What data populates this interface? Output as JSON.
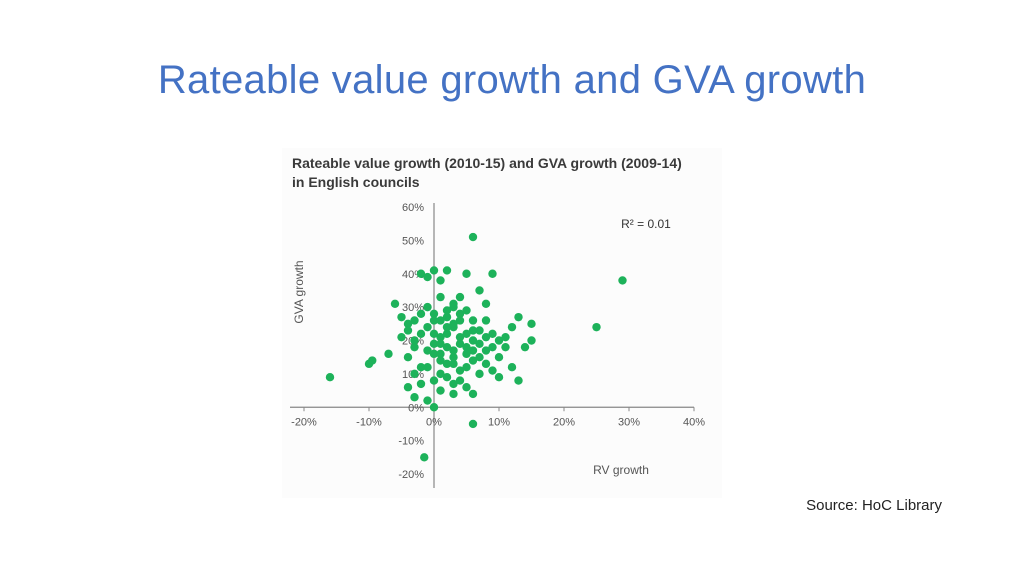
{
  "slide": {
    "title": "Rateable value growth and GVA growth",
    "source": "Source: HoC Library"
  },
  "colors": {
    "title": "#4472c4",
    "points": "#1db25a",
    "axis": "#888888",
    "text": "#555555"
  },
  "chart_data": {
    "type": "scatter",
    "title": "Rateable value growth (2010-15) and GVA growth (2009-14) in English councils",
    "xlabel": "RV growth",
    "ylabel": "GVA growth",
    "annotation": "R² = 0.01",
    "xlim": [
      -20,
      40
    ],
    "ylim": [
      -20,
      60
    ],
    "x_ticks": [
      -20,
      -10,
      0,
      10,
      20,
      30,
      40
    ],
    "y_ticks": [
      -20,
      -10,
      0,
      10,
      20,
      30,
      40,
      50,
      60
    ],
    "x_tick_labels": [
      "-20%",
      "-10%",
      "0%",
      "10%",
      "20%",
      "30%",
      "40%"
    ],
    "y_tick_labels": [
      "-20%",
      "-10%",
      "0%",
      "10%",
      "20%",
      "30%",
      "40%",
      "50%",
      "60%"
    ],
    "grid": false,
    "points": [
      [
        -16,
        9
      ],
      [
        -10,
        13
      ],
      [
        -9.5,
        14
      ],
      [
        -7,
        16
      ],
      [
        -6,
        31
      ],
      [
        -5,
        27
      ],
      [
        -4,
        23
      ],
      [
        -3,
        20
      ],
      [
        -3,
        10
      ],
      [
        -2,
        40
      ],
      [
        -1,
        39
      ],
      [
        0,
        41
      ],
      [
        1,
        38
      ],
      [
        2,
        41
      ],
      [
        5,
        40
      ],
      [
        6,
        51
      ],
      [
        9,
        40
      ],
      [
        7,
        35
      ],
      [
        8,
        31
      ],
      [
        4,
        33
      ],
      [
        3,
        30
      ],
      [
        12,
        24
      ],
      [
        13,
        27
      ],
      [
        15,
        25
      ],
      [
        15,
        20
      ],
      [
        14,
        18
      ],
      [
        12,
        12
      ],
      [
        13,
        8
      ],
      [
        11,
        18
      ],
      [
        10,
        15
      ],
      [
        25,
        24
      ],
      [
        29,
        38
      ],
      [
        -1,
        2
      ],
      [
        0,
        0
      ],
      [
        1,
        5
      ],
      [
        3,
        4
      ],
      [
        6,
        4
      ],
      [
        6,
        -5
      ],
      [
        -1.5,
        -15
      ],
      [
        -4,
        6
      ],
      [
        -3,
        3
      ],
      [
        -2,
        7
      ],
      [
        -1,
        12
      ],
      [
        0,
        16
      ],
      [
        1,
        19
      ],
      [
        2,
        22
      ],
      [
        3,
        24
      ],
      [
        4,
        21
      ],
      [
        5,
        18
      ],
      [
        6,
        20
      ],
      [
        7,
        23
      ],
      [
        8,
        26
      ],
      [
        9,
        22
      ],
      [
        10,
        20
      ],
      [
        4,
        28
      ],
      [
        2,
        27
      ],
      [
        0,
        26
      ],
      [
        -1,
        24
      ],
      [
        -2,
        22
      ],
      [
        -3,
        18
      ],
      [
        -4,
        15
      ],
      [
        1,
        14
      ],
      [
        3,
        13
      ],
      [
        5,
        12
      ],
      [
        7,
        15
      ],
      [
        8,
        17
      ],
      [
        9,
        11
      ],
      [
        10,
        9
      ],
      [
        4,
        8
      ],
      [
        2,
        9
      ],
      [
        0,
        8
      ],
      [
        -2,
        12
      ],
      [
        6,
        26
      ],
      [
        5,
        29
      ],
      [
        3,
        31
      ],
      [
        1,
        33
      ],
      [
        -1,
        30
      ],
      [
        0,
        22
      ],
      [
        1,
        21
      ],
      [
        2,
        24
      ],
      [
        3,
        25
      ],
      [
        4,
        26
      ],
      [
        5,
        22
      ],
      [
        6,
        23
      ],
      [
        2,
        18
      ],
      [
        3,
        17
      ],
      [
        4,
        19
      ],
      [
        1,
        26
      ],
      [
        2,
        29
      ],
      [
        0,
        28
      ],
      [
        -2,
        28
      ],
      [
        7,
        19
      ],
      [
        8,
        21
      ],
      [
        9,
        18
      ],
      [
        11,
        21
      ],
      [
        -3,
        26
      ],
      [
        -4,
        25
      ],
      [
        -5,
        21
      ],
      [
        5,
        16
      ],
      [
        6,
        14
      ],
      [
        4,
        11
      ],
      [
        3,
        7
      ],
      [
        8,
        13
      ],
      [
        0,
        19
      ],
      [
        1,
        16
      ],
      [
        2,
        13
      ],
      [
        -1,
        17
      ],
      [
        7,
        10
      ],
      [
        5,
        6
      ],
      [
        1,
        10
      ],
      [
        3,
        15
      ],
      [
        6,
        17
      ]
    ]
  }
}
